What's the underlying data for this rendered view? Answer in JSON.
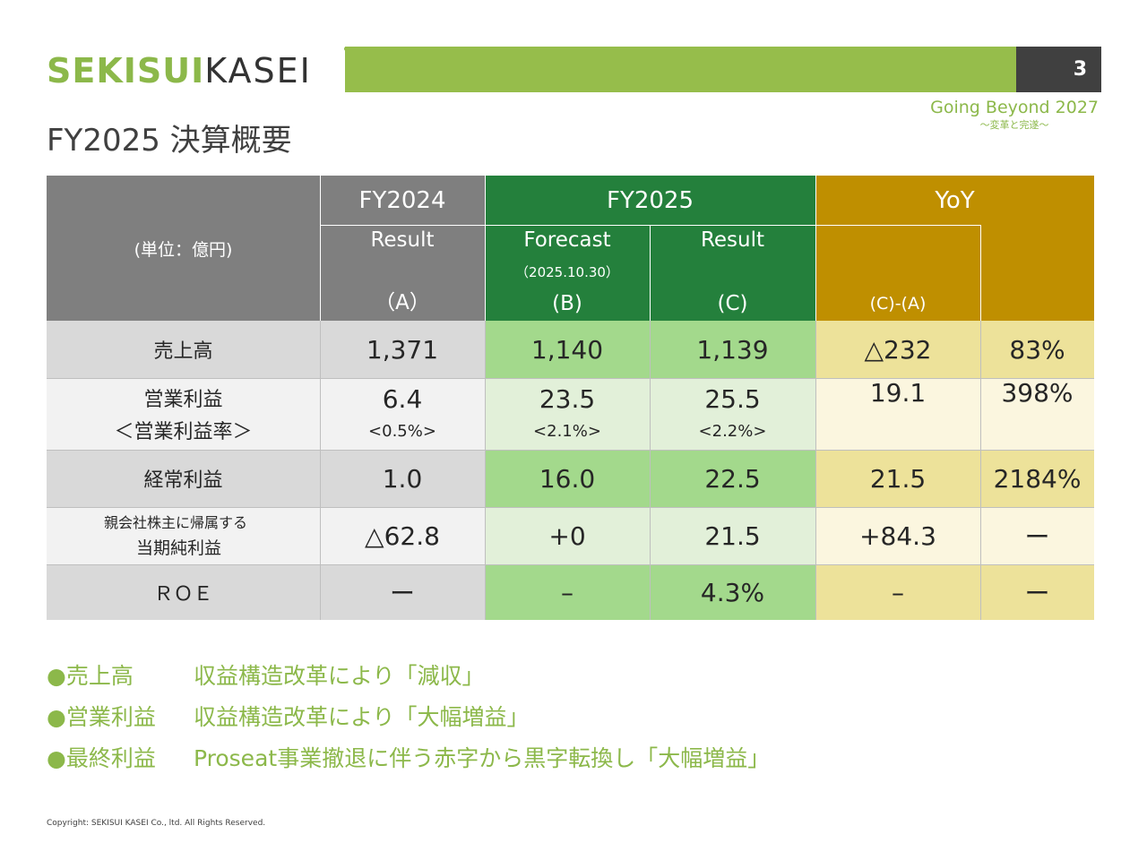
{
  "header": {
    "logo_bold": "SEKISUI",
    "logo_light": "KASEI",
    "page_number": "3",
    "tagline": "Going Beyond 2027",
    "tagline_sub": "〜変革と完遂〜"
  },
  "title": "FY2025 決算概要",
  "table": {
    "unit": "(単位：億円)",
    "fy2024": "FY2024",
    "fy2025": "FY2025",
    "yoy": "YoY",
    "col_a_label": "Result",
    "col_a_code": "（A）",
    "col_b_label": "Forecast",
    "col_b_date": "（2025.10.30）",
    "col_b_code": "(B)",
    "col_c_label": "Result",
    "col_c_code": "(C)",
    "col_d_code": "(C)-(A)",
    "rows": [
      {
        "label": "売上高",
        "a": "1,371",
        "b": "1,140",
        "c": "1,139",
        "d": "△232",
        "e": "83%"
      },
      {
        "label": "営業利益",
        "sub_label": "＜営業利益率＞",
        "a": "6.4",
        "a_sub": "<0.5%>",
        "b": "23.5",
        "b_sub": "<2.1%>",
        "c": "25.5",
        "c_sub": "<2.2%>",
        "d": "19.1",
        "e": "398%"
      },
      {
        "label": "経常利益",
        "a": "1.0",
        "b": "16.0",
        "c": "22.5",
        "d": "21.5",
        "e": "2184%"
      },
      {
        "label_line1": "親会社株主に帰属する",
        "label_line2": "当期純利益",
        "a": "△62.8",
        "b": "+0",
        "c": "21.5",
        "d": "+84.3",
        "e": "ー"
      },
      {
        "label": "ＲＯＥ",
        "a": "ー",
        "b": "–",
        "c": "4.3%",
        "d": "–",
        "e": "ー"
      }
    ]
  },
  "bullets": [
    {
      "marker": "●",
      "head": "売上高",
      "text": "収益構造改革により「減収」"
    },
    {
      "marker": "●",
      "head": "営業利益",
      "text": "収益構造改革により「大幅増益」"
    },
    {
      "marker": "●",
      "head": "最終利益",
      "text": "Proseat事業撤退に伴う赤字から黒字転換し「大幅増益」"
    }
  ],
  "copyright": "Copyright: SEKISUI KASEI Co., ltd. All Rights Reserved.",
  "colors": {
    "brand_green": "#8cb84a",
    "bar_green": "#96bd4b",
    "header_gray": "#7f7f7f",
    "header_green": "#24803c",
    "header_gold": "#bf8f00"
  }
}
